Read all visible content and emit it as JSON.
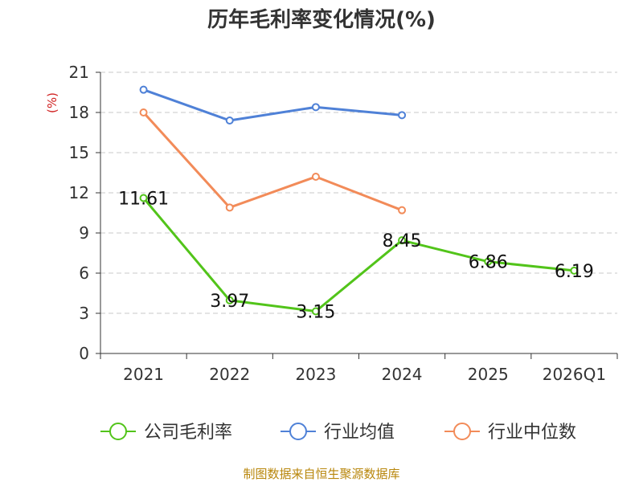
{
  "chart_data": {
    "type": "line",
    "title": "历年毛利率变化情况(%)",
    "ylabel": "(%)",
    "xlabel": "",
    "categories": [
      "2021",
      "2022",
      "2023",
      "2024",
      "2025",
      "2026Q1"
    ],
    "ylim": [
      0,
      21
    ],
    "yticks": [
      0,
      3,
      6,
      9,
      12,
      15,
      18,
      21
    ],
    "yticks_labels": [
      "0",
      "3",
      "6",
      "9",
      "12",
      "15",
      "18",
      "21"
    ],
    "grid": true,
    "legend_position": "bottom",
    "series": [
      {
        "name": "公司毛利率",
        "color": "#52c41a",
        "values": [
          11.61,
          3.97,
          3.15,
          8.45,
          6.86,
          6.19
        ],
        "labels": [
          "11.61",
          "3.97",
          "3.15",
          "8.45",
          "6.86",
          "6.19"
        ]
      },
      {
        "name": "行业均值",
        "color": "#4f81d7",
        "values": [
          19.7,
          17.4,
          18.4,
          17.8,
          null,
          null
        ]
      },
      {
        "name": "行业中位数",
        "color": "#f28b59",
        "values": [
          18.0,
          10.9,
          13.2,
          10.7,
          null,
          null
        ]
      }
    ]
  },
  "source": "制图数据来自恒生聚源数据库"
}
